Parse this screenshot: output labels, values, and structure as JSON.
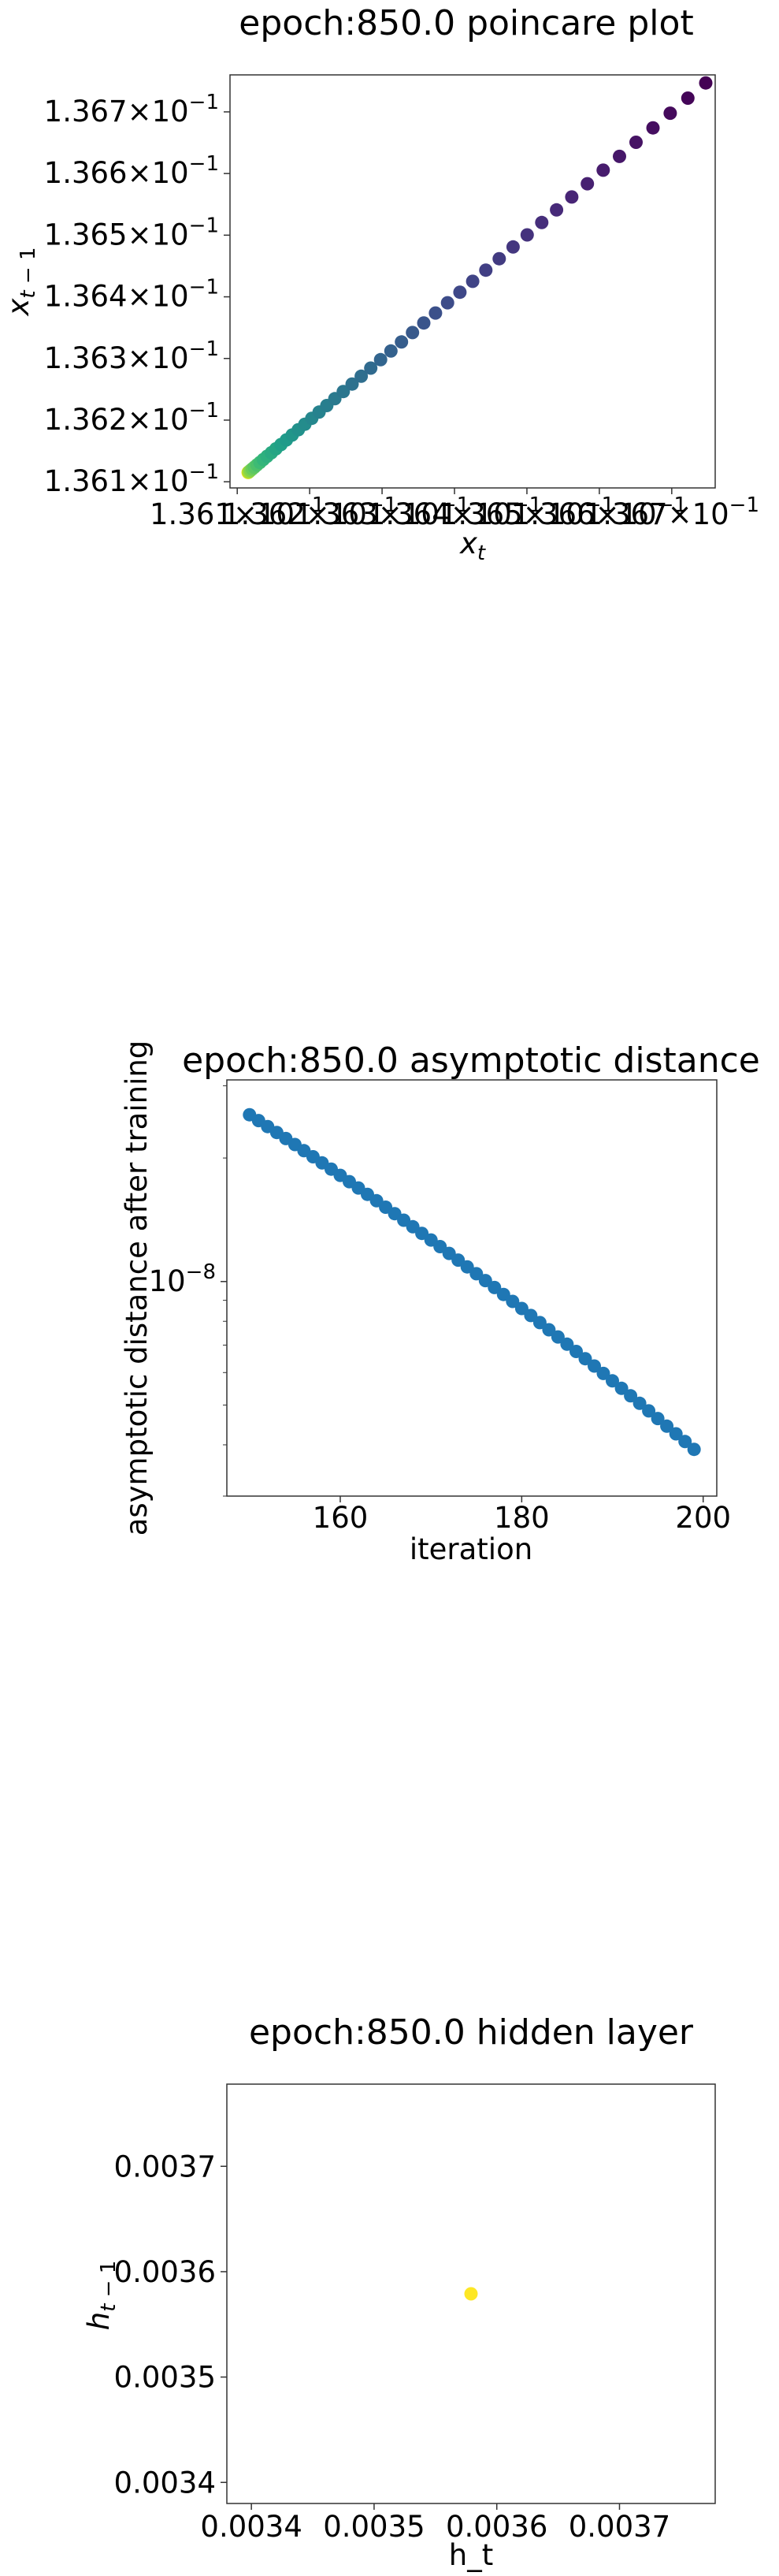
{
  "chart_data": [
    {
      "type": "scatter",
      "title": "epoch:850.0 poincare plot",
      "xlabel": "x_t",
      "ylabel": "x_{t-1}",
      "colormap": "viridis",
      "xlim": [
        0.13609,
        0.13676
      ],
      "ylim": [
        0.13609,
        0.13676
      ],
      "xticks": [
        0.1361,
        0.1362,
        0.1363,
        0.1364,
        0.1365,
        0.1366,
        0.1367
      ],
      "yticks": [
        0.1361,
        0.1362,
        0.1363,
        0.1364,
        0.1365,
        0.1366,
        0.1367
      ],
      "tick_labels": {
        "mantissa": [
          "1.361",
          "1.362",
          "1.363",
          "1.364",
          "1.365",
          "1.366",
          "1.367"
        ],
        "times": "×",
        "base": "10",
        "exponent": "−1"
      },
      "x_range": [
        0.136115,
        0.136747
      ],
      "n_points": 49
    },
    {
      "type": "scatter",
      "title": "epoch:850.0 asymptotic distance",
      "xlabel": "iteration",
      "ylabel": "asymptotic distance after training",
      "yscale": "log",
      "color": "#1f77b4",
      "xlim": [
        147.5,
        201.5
      ],
      "ylim": [
        3e-09,
        3.1e-08
      ],
      "xticks": [
        160,
        180,
        200
      ],
      "xtick_labels": [
        "160",
        "180",
        "200"
      ],
      "ytick_major": 1e-08,
      "ytick_label": {
        "base": "10",
        "exponent": "−8"
      },
      "x": [
        150,
        151,
        152,
        153,
        154,
        155,
        156,
        157,
        158,
        159,
        160,
        161,
        162,
        163,
        164,
        165,
        166,
        167,
        168,
        169,
        170,
        171,
        172,
        173,
        174,
        175,
        176,
        177,
        178,
        179,
        180,
        181,
        182,
        183,
        184,
        185,
        186,
        187,
        188,
        189,
        190,
        191,
        192,
        193,
        194,
        195,
        196,
        197,
        198,
        199
      ],
      "y_start": 2.55e-08,
      "y_end": 3.9e-09
    },
    {
      "type": "scatter",
      "title": "epoch:850.0 hidden layer",
      "xlabel": "h_t",
      "ylabel": "h_{t-1}",
      "color": "#fde725",
      "xlim": [
        0.00338,
        0.003778
      ],
      "ylim": [
        0.00338,
        0.003778
      ],
      "xticks": [
        0.0034,
        0.0035,
        0.0036,
        0.0037
      ],
      "yticks": [
        0.0034,
        0.0035,
        0.0036,
        0.0037
      ],
      "xtick_labels": [
        "0.0034",
        "0.0035",
        "0.0036",
        "0.0037"
      ],
      "ytick_labels": [
        "0.0034",
        "0.0035",
        "0.0036",
        "0.0037"
      ],
      "points": [
        {
          "x": 0.003579,
          "y": 0.003579
        }
      ]
    }
  ]
}
